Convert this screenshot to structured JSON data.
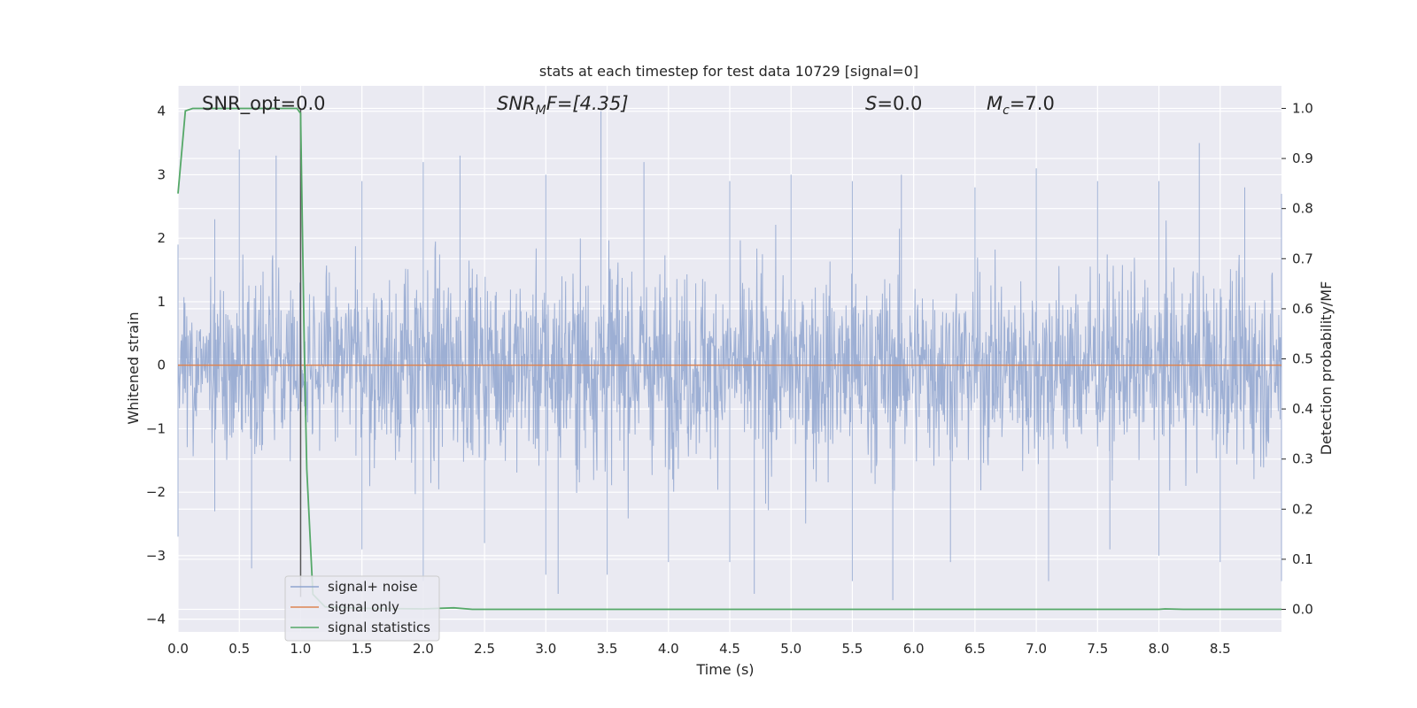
{
  "chart_data": {
    "type": "line",
    "title": "stats at each timestep for test data 10729 [signal=0]",
    "xlabel": "Time (s)",
    "ylabel": "Whitened strain",
    "ylabel_right": "Detection probability/MF",
    "xlim": [
      0.0,
      9.0
    ],
    "ylim": [
      -4.2,
      4.4
    ],
    "ylim_right": [
      -0.045,
      1.045
    ],
    "x_ticks": [
      "0.0",
      "0.5",
      "1.0",
      "1.5",
      "2.0",
      "2.5",
      "3.0",
      "3.5",
      "4.0",
      "4.5",
      "5.0",
      "5.5",
      "6.0",
      "6.5",
      "7.0",
      "7.5",
      "8.0",
      "8.5"
    ],
    "y_ticks": [
      "4",
      "3",
      "2",
      "1",
      "0",
      "−1",
      "−2",
      "−3",
      "−4"
    ],
    "y_ticks_right": [
      "1.0",
      "0.9",
      "0.8",
      "0.7",
      "0.6",
      "0.5",
      "0.4",
      "0.3",
      "0.2",
      "0.1",
      "0.0"
    ],
    "grid": true,
    "legend_position": "lower-left",
    "annotations": {
      "snr_opt": "SNR_opt=0.0",
      "snr_mf_base": "SNR",
      "snr_mf_sub": "M",
      "snr_mf_rest": "F=[4.35]",
      "s_italic": "S",
      "s_rest": "=0.0",
      "mc_base": "M",
      "mc_sub": "c",
      "mc_rest": "=7.0"
    },
    "series": [
      {
        "name": "signal+ noise",
        "color": "#8fa5cf",
        "kind": "dense noise, whitened strain, approx. range -3.7 to 4.0",
        "envelope_upper": [
          [
            0.0,
            1.9
          ],
          [
            0.3,
            2.3
          ],
          [
            0.5,
            3.4
          ],
          [
            0.8,
            3.3
          ],
          [
            1.0,
            3.4
          ],
          [
            1.5,
            2.9
          ],
          [
            2.0,
            3.2
          ],
          [
            2.3,
            3.3
          ],
          [
            3.0,
            3.0
          ],
          [
            3.45,
            4.0
          ],
          [
            3.8,
            3.2
          ],
          [
            4.5,
            2.9
          ],
          [
            5.0,
            3.0
          ],
          [
            5.5,
            2.9
          ],
          [
            5.9,
            3.0
          ],
          [
            6.5,
            2.8
          ],
          [
            7.0,
            3.1
          ],
          [
            7.5,
            2.9
          ],
          [
            8.0,
            2.9
          ],
          [
            8.33,
            3.5
          ],
          [
            8.7,
            2.8
          ],
          [
            9.0,
            2.7
          ]
        ],
        "envelope_lower": [
          [
            0.0,
            -2.7
          ],
          [
            0.3,
            -2.3
          ],
          [
            0.6,
            -3.2
          ],
          [
            1.0,
            -2.2
          ],
          [
            1.5,
            -2.9
          ],
          [
            2.0,
            -3.4
          ],
          [
            2.5,
            -2.8
          ],
          [
            3.0,
            -3.3
          ],
          [
            3.1,
            -3.6
          ],
          [
            3.5,
            -3.3
          ],
          [
            4.0,
            -3.1
          ],
          [
            4.5,
            -3.1
          ],
          [
            4.7,
            -3.6
          ],
          [
            5.5,
            -3.4
          ],
          [
            5.83,
            -3.7
          ],
          [
            6.3,
            -3.1
          ],
          [
            7.1,
            -3.4
          ],
          [
            7.6,
            -2.9
          ],
          [
            8.0,
            -3.0
          ],
          [
            8.5,
            -3.1
          ],
          [
            9.0,
            -3.4
          ]
        ]
      },
      {
        "name": "signal only",
        "color": "#dd8452",
        "x": [
          0.0,
          9.0
        ],
        "y": [
          0.0,
          0.0
        ]
      },
      {
        "name": "signal statistics",
        "color": "#55a868",
        "axis": "right",
        "x": [
          0.0,
          0.06,
          0.12,
          0.2,
          0.5,
          0.9,
          0.97,
          1.0,
          1.03,
          1.05,
          1.1,
          1.2,
          1.5,
          2.0,
          2.25,
          2.4,
          3.0,
          4.0,
          5.0,
          6.0,
          7.0,
          8.0,
          8.05,
          8.2,
          9.0
        ],
        "y": [
          0.83,
          0.995,
          1.0,
          1.0,
          1.0,
          1.0,
          1.0,
          0.99,
          0.52,
          0.28,
          0.03,
          0.005,
          0.002,
          0.001,
          0.003,
          0.0,
          0.0,
          0.0,
          0.0,
          0.0,
          0.0,
          0.0,
          0.001,
          0.0,
          0.0
        ]
      }
    ],
    "vertical_line": {
      "x": 1.0,
      "color": "#555555"
    }
  }
}
